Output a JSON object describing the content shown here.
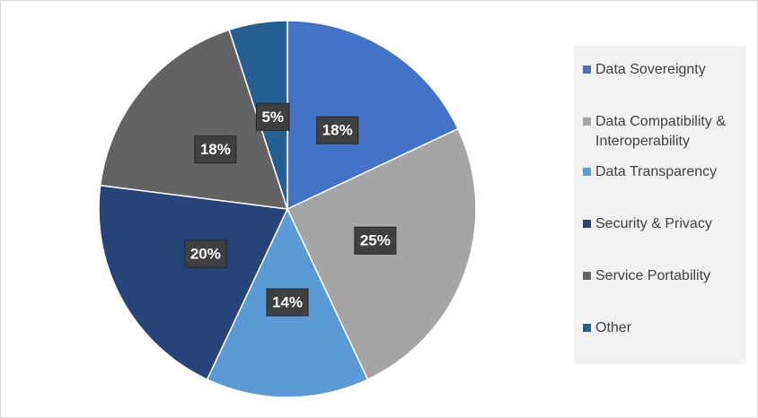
{
  "chart_data": {
    "type": "pie",
    "series": [
      {
        "name": "Data Sovereignty",
        "color": "#4472c4",
        "values": [
          18
        ],
        "value_labels": [
          "18%"
        ]
      },
      {
        "name": "Data Compatibility & Interoperability",
        "color": "#a5a5a5",
        "values": [
          25
        ],
        "value_labels": [
          "25%"
        ]
      },
      {
        "name": "Data Transparency",
        "color": "#5b9bd5",
        "values": [
          14
        ],
        "value_labels": [
          "14%"
        ]
      },
      {
        "name": "Security & Privacy",
        "color": "#264478",
        "values": [
          20
        ],
        "value_labels": [
          "20%"
        ]
      },
      {
        "name": "Service Portability",
        "color": "#636363",
        "values": [
          18
        ],
        "value_labels": [
          "18%"
        ]
      },
      {
        "name": "Other",
        "color": "#255e91",
        "values": [
          5
        ],
        "value_labels": [
          "5%"
        ]
      }
    ],
    "legend": "right"
  }
}
